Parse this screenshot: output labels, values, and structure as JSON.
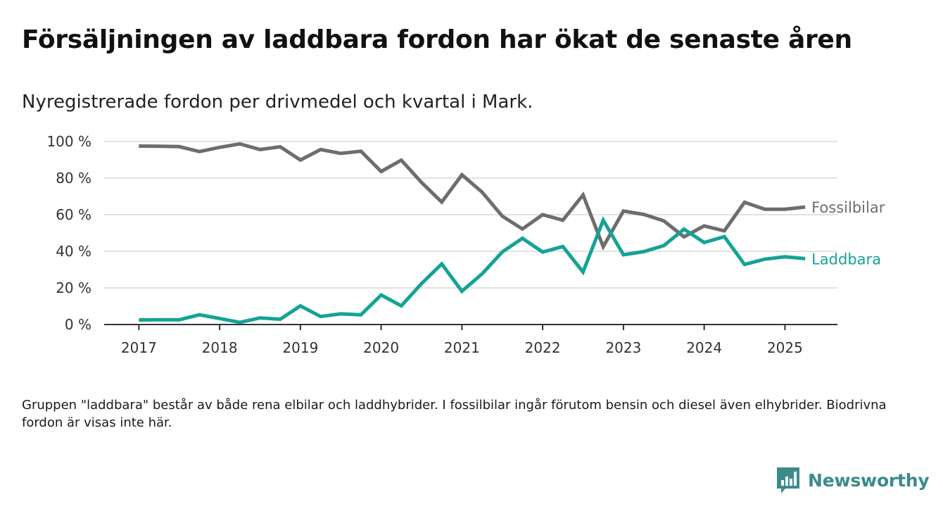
{
  "header": {
    "title": "Försäljningen av laddbara fordon har ökat de senaste åren",
    "subtitle": "Nyregistrerade fordon per drivmedel och kvartal i Mark."
  },
  "footer": {
    "note": "Gruppen \"laddbara\" består av både rena elbilar och laddhybrider. I fossilbilar ingår förutom bensin och diesel även elhybrider. Biodrivna fordon är visas inte här.",
    "brand": "Newsworthy"
  },
  "colors": {
    "fossil": "#6d6d70",
    "laddbara": "#14a396",
    "grid": "#d9d9d9",
    "axis": "#333333",
    "brand": "#3c8b8b"
  },
  "icons": {
    "brand_logo": "newsworthy-chart-logo-icon"
  },
  "chart_data": {
    "type": "line",
    "title": "Försäljningen av laddbara fordon har ökat de senaste åren",
    "subtitle": "Nyregistrerade fordon per drivmedel och kvartal i Mark.",
    "x": [
      2017.0,
      2017.25,
      2017.5,
      2017.75,
      2018.0,
      2018.25,
      2018.5,
      2018.75,
      2019.0,
      2019.25,
      2019.5,
      2019.75,
      2020.0,
      2020.25,
      2020.5,
      2020.75,
      2021.0,
      2021.25,
      2021.5,
      2021.75,
      2022.0,
      2022.25,
      2022.5,
      2022.75,
      2023.0,
      2023.25,
      2023.5,
      2023.75,
      2024.0,
      2024.25,
      2024.5,
      2024.75,
      2025.0,
      2025.25
    ],
    "xlim": [
      2016.57,
      2025.65
    ],
    "ylim": [
      0,
      100
    ],
    "y_ticks": [
      0,
      20,
      40,
      60,
      80,
      100
    ],
    "y_tick_labels": [
      "0 %",
      "20 %",
      "40 %",
      "60 %",
      "80 %",
      "100 %"
    ],
    "x_ticks": [
      2017,
      2018,
      2019,
      2020,
      2021,
      2022,
      2023,
      2024,
      2025
    ],
    "x_tick_labels": [
      "2017",
      "2018",
      "2019",
      "2020",
      "2021",
      "2022",
      "2023",
      "2024",
      "2025"
    ],
    "grid": "horizontal",
    "legend": "direct labels at line ends",
    "series": [
      {
        "name": "Fossilbilar",
        "color": "#6d6d70",
        "values": [
          97.5,
          97.4,
          97.2,
          94.5,
          96.8,
          98.7,
          95.6,
          97.1,
          89.9,
          95.6,
          93.5,
          94.7,
          83.6,
          89.8,
          77.6,
          66.9,
          81.8,
          72.3,
          59.2,
          52.2,
          60.0,
          57.0,
          70.8,
          42.5,
          62.0,
          60.2,
          56.6,
          47.9,
          53.9,
          51.2,
          66.8,
          63.0,
          63.0,
          64.2
        ]
      },
      {
        "name": "Laddbara",
        "color": "#14a396",
        "values": [
          2.5,
          2.6,
          2.6,
          5.3,
          3.3,
          1.2,
          3.6,
          2.9,
          10.2,
          4.4,
          5.8,
          5.3,
          16.1,
          10.2,
          22.4,
          33.1,
          18.2,
          27.7,
          39.7,
          47.1,
          39.6,
          42.6,
          28.7,
          57.0,
          38.1,
          39.8,
          43.1,
          52.1,
          44.8,
          48.0,
          32.8,
          35.7,
          37.0,
          36.0
        ]
      }
    ]
  }
}
